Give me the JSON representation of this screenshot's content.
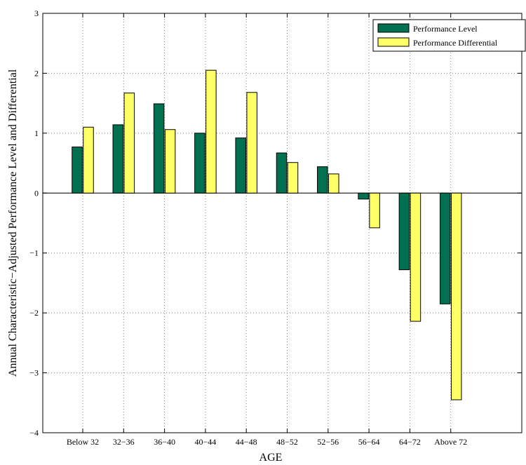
{
  "chart_data": {
    "type": "bar",
    "xlabel": "AGE",
    "ylabel": "Annual Characteristic−Adjusted Performance Level and Differential",
    "ylim": [
      -4,
      3
    ],
    "yticks": [
      -4,
      -3,
      -2,
      -1,
      0,
      1,
      2,
      3
    ],
    "ytick_labels": [
      "−4",
      "−3",
      "−2",
      "−1",
      "0",
      "1",
      "2",
      "3"
    ],
    "grid": true,
    "legend_position": "top-right",
    "categories": [
      "Below 32",
      "32−36",
      "36−40",
      "40−44",
      "44−48",
      "48−52",
      "52−56",
      "56−64",
      "64−72",
      "Above 72"
    ],
    "series": [
      {
        "name": "Performance Level",
        "color": "#007050",
        "values": [
          0.77,
          1.14,
          1.49,
          1.0,
          0.92,
          0.67,
          0.44,
          -0.1,
          -1.28,
          -1.85
        ]
      },
      {
        "name": "Performance Differential",
        "color": "#ffff66",
        "values": [
          1.1,
          1.67,
          1.06,
          2.05,
          1.68,
          0.51,
          0.32,
          -0.58,
          -2.14,
          -3.45
        ]
      }
    ]
  }
}
